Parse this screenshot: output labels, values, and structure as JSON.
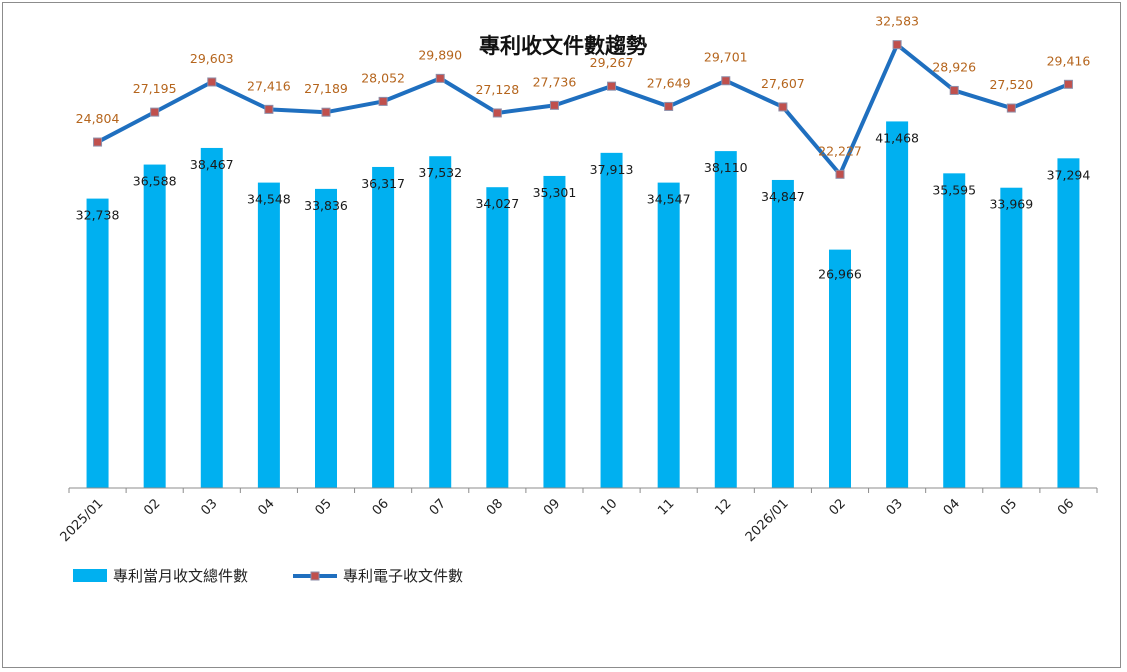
{
  "chart_data": {
    "type": "bar",
    "title": "專利收文件數趨勢",
    "categories": [
      "2025/01",
      "02",
      "03",
      "04",
      "05",
      "06",
      "07",
      "08",
      "09",
      "10",
      "11",
      "12",
      "2026/01",
      "02",
      "03",
      "04",
      "05",
      "06"
    ],
    "series": [
      {
        "name": "專利當月收文總件數",
        "type": "bar",
        "values": [
          32738,
          36588,
          38467,
          34548,
          33836,
          36317,
          37532,
          34027,
          35301,
          37913,
          34547,
          38110,
          34847,
          26966,
          41468,
          35595,
          33969,
          37294
        ],
        "labels": [
          "32,738",
          "36,588",
          "38,467",
          "34,548",
          "33,836",
          "36,317",
          "37,532",
          "34,027",
          "35,301",
          "37,913",
          "34,547",
          "38,110",
          "34,847",
          "26,966",
          "41,468",
          "35,595",
          "33,969",
          "37,294"
        ]
      },
      {
        "name": "專利電子收文件數",
        "type": "line",
        "values": [
          24804,
          27195,
          29603,
          27416,
          27189,
          28052,
          29890,
          27128,
          27736,
          29267,
          27649,
          29701,
          27607,
          22227,
          32583,
          28926,
          27520,
          29416
        ],
        "labels": [
          "24,804",
          "27,195",
          "29,603",
          "27,416",
          "27,189",
          "28,052",
          "29,890",
          "27,128",
          "27,736",
          "29,267",
          "27,649",
          "29,701",
          "27,607",
          "22,227",
          "32,583",
          "28,926",
          "27,520",
          "29,416"
        ]
      }
    ],
    "legend_position": "bottom-left",
    "colors": {
      "bar": "#00b0f0",
      "line": "#1f6fbf",
      "marker": "#c0504d",
      "line_label": "#b5651d"
    }
  }
}
